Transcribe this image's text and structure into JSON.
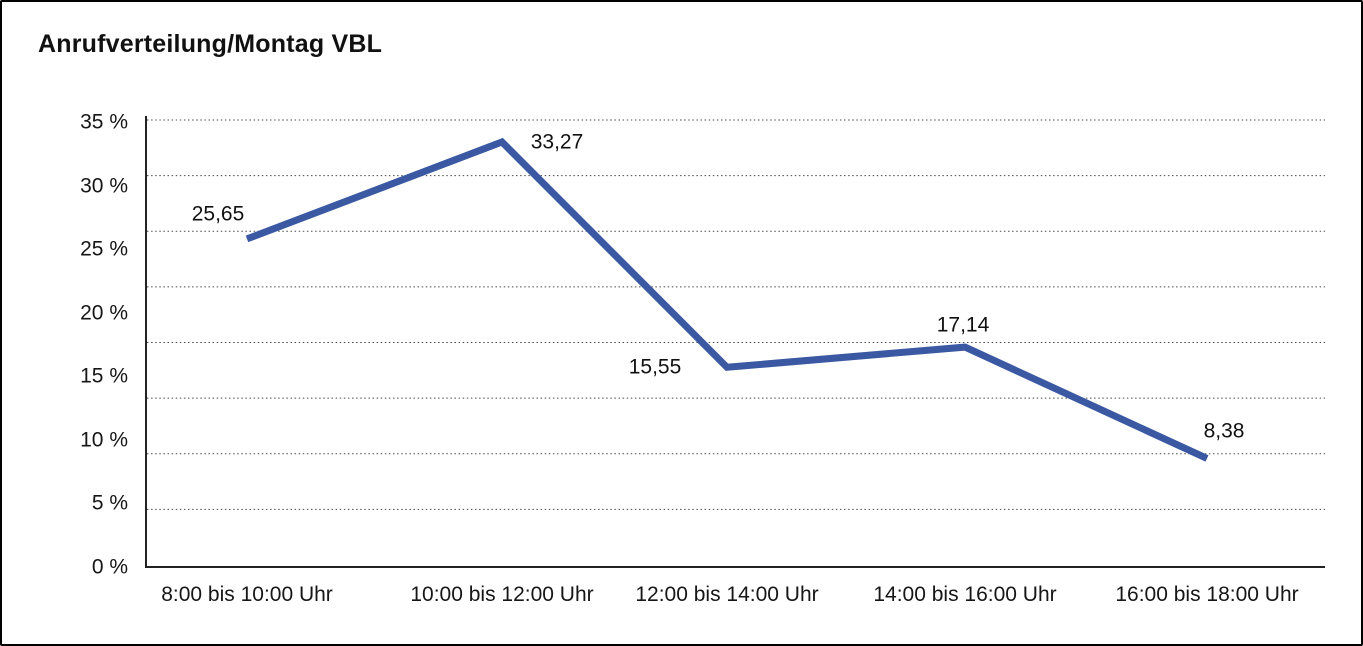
{
  "chart": {
    "title": "Anrufverteilung/Montag VBL"
  },
  "chart_data": {
    "type": "line",
    "title": "Anrufverteilung/Montag VBL",
    "categories": [
      "8:00 bis 10:00 Uhr",
      "10:00 bis 12:00 Uhr",
      "12:00 bis 14:00 Uhr",
      "14:00 bis 16:00 Uhr",
      "16:00 bis 18:00 Uhr"
    ],
    "values": [
      25.65,
      33.27,
      15.55,
      17.14,
      8.38
    ],
    "value_labels": [
      "25,65",
      "33,27",
      "15,55",
      "17,14",
      "8,38"
    ],
    "y_ticks": [
      {
        "value": 0,
        "label": "0 %"
      },
      {
        "value": 5,
        "label": "5 %"
      },
      {
        "value": 10,
        "label": "10 %"
      },
      {
        "value": 15,
        "label": "15 %"
      },
      {
        "value": 20,
        "label": "20 %"
      },
      {
        "value": 25,
        "label": "25 %"
      },
      {
        "value": 30,
        "label": "30 %"
      },
      {
        "value": 35,
        "label": "35 %"
      }
    ],
    "ylim": [
      0,
      35
    ],
    "xlabel": "",
    "ylabel": "",
    "grid": "horizontal-dotted",
    "grid_intervals": 8,
    "legend": "none",
    "line_color": "#3B58A3",
    "grid_color": "#4a4a4a",
    "axis_color": "#222222",
    "text_color": "#161616"
  }
}
